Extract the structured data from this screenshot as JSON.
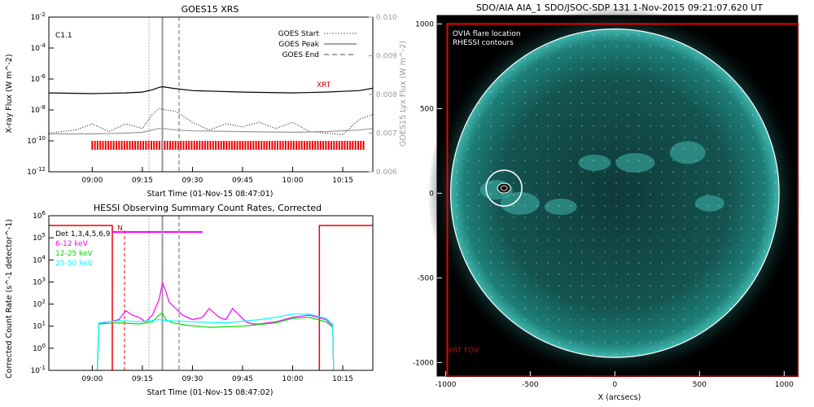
{
  "chart_data": [
    {
      "type": "line",
      "title": "GOES15 XRS",
      "xlabel": "Start Time (01-Nov-15 08:47:01)",
      "ylabel": "X-ray Flux (W m^-2)",
      "ylabel_right": "GOES15 Lyx Flux (W m^-2)",
      "x_ticks": [
        "09:00",
        "09:15",
        "09:30",
        "09:45",
        "10:00",
        "10:15"
      ],
      "y_ticks": [
        "10^-2",
        "10^-4",
        "10^-6",
        "10^-8",
        "10^-10",
        "10^-12"
      ],
      "y_ticks_right": [
        "0.010",
        "0.009",
        "0.008",
        "0.007",
        "0.006"
      ],
      "xlim": [
        "08:47",
        "10:24"
      ],
      "ylim_exp": [
        -12,
        -2
      ],
      "ylim_right": [
        0.006,
        0.01
      ],
      "annotation": "C1.1",
      "xrt_label": "XRT",
      "legend": [
        {
          "label": "GOES Start",
          "style": "dotted"
        },
        {
          "label": "GOES Peak",
          "style": "solid"
        },
        {
          "label": "GOES End",
          "style": "dashed"
        }
      ],
      "event_lines": {
        "start": "09:17",
        "peak": "09:21",
        "end": "09:26"
      },
      "xrt_observation_window": [
        "09:00",
        "10:22"
      ],
      "series": [
        {
          "name": "",
          "color": "#000000",
          "style": "solid",
          "x": [
            "08:47",
            "09:00",
            "09:10",
            "09:15",
            "09:18",
            "09:20",
            "09:21",
            "09:24",
            "09:30",
            "09:45",
            "10:00",
            "10:10",
            "10:15",
            "10:20",
            "10:24"
          ],
          "log_y": [
            -6.9,
            -6.95,
            -6.9,
            -6.85,
            -6.7,
            -6.55,
            -6.5,
            -6.6,
            -6.75,
            -6.85,
            -6.9,
            -6.85,
            -6.8,
            -6.75,
            -6.6
          ]
        },
        {
          "name": "",
          "color": "#000000",
          "style": "dotted",
          "x": [
            "08:47",
            "08:55",
            "09:00",
            "09:05",
            "09:10",
            "09:15",
            "09:18",
            "09:20",
            "09:22",
            "09:25",
            "09:30",
            "09:35",
            "09:40",
            "09:45",
            "09:50",
            "09:55",
            "10:00",
            "10:05",
            "10:10",
            "10:15",
            "10:20",
            "10:24"
          ],
          "log_y": [
            -9.5,
            -9.3,
            -8.9,
            -9.4,
            -8.9,
            -9.2,
            -8.3,
            -7.9,
            -8.0,
            -8.1,
            -8.8,
            -9.3,
            -8.9,
            -9.1,
            -8.8,
            -9.2,
            -8.8,
            -9.4,
            -9.5,
            -9.6,
            -8.6,
            -8.3
          ]
        },
        {
          "name": "",
          "color": "#999999",
          "style": "solid",
          "x": [
            "08:47",
            "09:00",
            "09:10",
            "09:15",
            "09:18",
            "09:20",
            "09:21",
            "09:25",
            "09:30",
            "09:45",
            "10:00",
            "10:10",
            "10:20",
            "10:24"
          ],
          "log_y": [
            -9.55,
            -9.55,
            -9.5,
            -9.45,
            -9.3,
            -9.2,
            -9.2,
            -9.3,
            -9.35,
            -9.4,
            -9.45,
            -9.4,
            -9.3,
            -9.2
          ]
        }
      ]
    },
    {
      "type": "line",
      "title": "HESSI Observing Summary Count Rates, Corrected",
      "xlabel": "Start Time (01-Nov-15 08:47:02)",
      "ylabel": "Corrected Count Rate (s^-1 detector^-1)",
      "x_ticks": [
        "09:00",
        "09:15",
        "09:30",
        "09:45",
        "10:00",
        "10:15"
      ],
      "y_ticks": [
        "10^6",
        "10^5",
        "10^4",
        "10^3",
        "10^2",
        "10^1",
        "10^0",
        "10^-1"
      ],
      "xlim": [
        "08:47",
        "10:24"
      ],
      "ylim_exp": [
        -1,
        6
      ],
      "legend_title": "Det 1,3,4,5,6,9",
      "night_label": "N",
      "legend": [
        {
          "label": "6-12 keV",
          "color": "#ff00ff"
        },
        {
          "label": "12-25 keV",
          "color": "#00dd00"
        },
        {
          "label": "25-50 keV",
          "color": "#00ffff"
        }
      ],
      "event_lines": {
        "start": "09:17",
        "peak": "09:21",
        "end": "09:26"
      },
      "night_intervals": [
        [
          "08:47",
          "09:06"
        ],
        [
          "10:08",
          "10:24"
        ]
      ],
      "saa_bar": [
        "09:06",
        "09:33"
      ],
      "series": [
        {
          "name": "6-12 keV",
          "color": "#ff00ff",
          "x": [
            "09:02",
            "09:05",
            "09:08",
            "09:10",
            "09:12",
            "09:14",
            "09:16",
            "09:18",
            "09:20",
            "09:21",
            "09:22",
            "09:23",
            "09:25",
            "09:27",
            "09:30",
            "09:33",
            "09:35",
            "09:38",
            "09:40",
            "09:42",
            "09:44",
            "09:46",
            "09:48",
            "09:50",
            "09:55",
            "10:00",
            "10:05",
            "10:10",
            "10:12"
          ],
          "log_y": [
            1.1,
            1.2,
            1.3,
            1.7,
            1.5,
            1.4,
            1.2,
            1.5,
            2.2,
            2.95,
            2.6,
            2.1,
            1.8,
            1.5,
            1.3,
            1.4,
            1.8,
            1.4,
            1.3,
            1.8,
            1.5,
            1.2,
            1.1,
            1.1,
            1.2,
            1.4,
            1.5,
            1.3,
            1.0
          ]
        },
        {
          "name": "12-25 keV",
          "color": "#00dd00",
          "x": [
            "09:02",
            "09:08",
            "09:14",
            "09:18",
            "09:20",
            "09:21",
            "09:22",
            "09:24",
            "09:28",
            "09:35",
            "09:45",
            "09:55",
            "10:00",
            "10:05",
            "10:10",
            "10:12"
          ],
          "log_y": [
            1.1,
            1.15,
            1.1,
            1.2,
            1.5,
            1.6,
            1.3,
            1.15,
            1.05,
            0.95,
            1.0,
            1.15,
            1.35,
            1.4,
            1.2,
            0.95
          ]
        },
        {
          "name": "25-50 keV",
          "color": "#00ffff",
          "x": [
            "09:02",
            "09:08",
            "09:14",
            "09:20",
            "09:22",
            "09:30",
            "09:40",
            "09:50",
            "09:55",
            "10:00",
            "10:05",
            "10:10",
            "10:12"
          ],
          "log_y": [
            1.15,
            1.25,
            1.2,
            1.3,
            1.25,
            1.2,
            1.15,
            1.3,
            1.4,
            1.55,
            1.55,
            1.35,
            1.1
          ]
        }
      ]
    },
    {
      "type": "heatmap",
      "title": "SDO/AIA AIA_1 SDO/JSOC-SDP 131  1-Nov-2015 09:21:07.620 UT",
      "xlabel": "X (arcsecs)",
      "ylabel": "",
      "x_ticks": [
        "-1000",
        "-500",
        "0",
        "500",
        "1000"
      ],
      "y_ticks": [
        "1000",
        "500",
        "0",
        "-500",
        "-1000"
      ],
      "xlim": [
        -1050,
        1080
      ],
      "ylim": [
        -1080,
        1050
      ],
      "legend": [
        {
          "label": "OVIA flare location"
        },
        {
          "label": "RHESSI contours"
        }
      ],
      "fov_label": "XRT FOV",
      "solar_radius_arcsec": 970,
      "flare_location_arcsec": [
        -655,
        30
      ],
      "xrt_fov_arcsec": {
        "x": [
          -990,
          1080
        ],
        "y": [
          -1080,
          1000
        ]
      }
    }
  ]
}
